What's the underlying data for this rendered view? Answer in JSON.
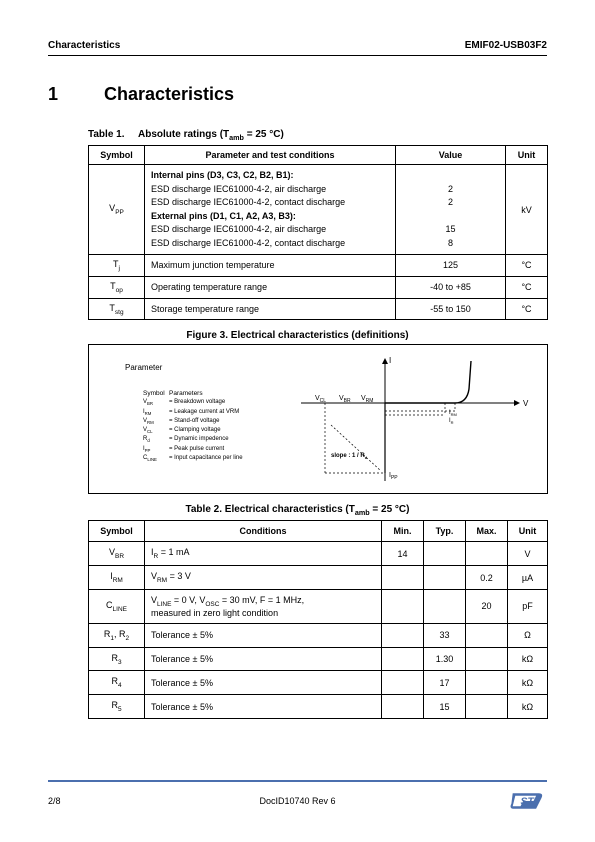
{
  "header": {
    "left": "Characteristics",
    "right": "EMIF02-USB03F2"
  },
  "section": {
    "number": "1",
    "title": "Characteristics"
  },
  "table1": {
    "caption_prefix": "Table 1.",
    "caption_main": "Absolute ratings (T",
    "caption_sub": "amb",
    "caption_suffix": " = 25 °C)",
    "headers": {
      "symbol": "Symbol",
      "param": "Parameter and test conditions",
      "value": "Value",
      "unit": "Unit"
    },
    "rows": [
      {
        "symbol_main": "V",
        "symbol_sub": "PP",
        "lines": [
          {
            "text": "Internal pins (D3, C3, C2, B2, B1):",
            "bold": true
          },
          {
            "text": "ESD discharge IEC61000-4-2, air discharge"
          },
          {
            "text": "ESD discharge IEC61000-4-2, contact discharge"
          },
          {
            "text": "External pins (D1, C1, A2, A3, B3):",
            "bold": true
          },
          {
            "text": "ESD discharge IEC61000-4-2, air discharge"
          },
          {
            "text": "ESD discharge IEC61000-4-2, contact discharge"
          }
        ],
        "values": [
          "",
          "2",
          "2",
          "",
          "15",
          "8"
        ],
        "unit": "kV"
      },
      {
        "symbol_main": "T",
        "symbol_sub": "j",
        "param": "Maximum junction temperature",
        "value": "125",
        "unit": "°C"
      },
      {
        "symbol_main": "T",
        "symbol_sub": "op",
        "param": "Operating temperature range",
        "value": "-40 to +85",
        "unit": "°C"
      },
      {
        "symbol_main": "T",
        "symbol_sub": "stg",
        "param": "Storage temperature range",
        "value": "-55 to 150",
        "unit": "°C"
      }
    ]
  },
  "figure3": {
    "caption": "Figure 3. Electrical characteristics (definitions)",
    "param_label": "Parameter",
    "legend_head_sym": "Symbol",
    "legend_head_par": "Parameters",
    "legend": [
      {
        "sym": "V",
        "sub": "BR",
        "desc": "= Breakdown voltage"
      },
      {
        "sym": "I",
        "sub": "RM",
        "desc": "= Leakage current at VRM"
      },
      {
        "sym": "V",
        "sub": "RM",
        "desc": "= Stand-off voltage"
      },
      {
        "sym": "V",
        "sub": "CL",
        "desc": "= Clamping voltage"
      },
      {
        "sym": "R",
        "sub": "d",
        "desc": "= Dynamic impedence"
      },
      {
        "sym": "I",
        "sub": "PP",
        "desc": "= Peak pulse current"
      },
      {
        "sym": "C",
        "sub": "LINE",
        "desc": "= Input capacitance per line"
      }
    ],
    "axis_labels": {
      "I": "I",
      "V": "V",
      "VCL": "V",
      "VCL_sub": "CL",
      "VBR": "V",
      "VBR_sub": "BR",
      "VRM": "V",
      "VRM_sub": "RM",
      "IRM": "I",
      "IRM_sub": "RM",
      "IR": "I",
      "IR_sub": "R",
      "IPP": "I",
      "IPP_sub": "PP",
      "slope": "slope : 1 / R",
      "slope_sub": "d"
    },
    "colors": {
      "axis": "#000000",
      "curve": "#000000",
      "dash": "#000000"
    }
  },
  "table2": {
    "caption_prefix": "Table 2. Electrical characteristics (T",
    "caption_sub": "amb",
    "caption_suffix": " = 25 °C)",
    "headers": {
      "symbol": "Symbol",
      "cond": "Conditions",
      "min": "Min.",
      "typ": "Typ.",
      "max": "Max.",
      "unit": "Unit"
    },
    "rows": [
      {
        "sym": "V",
        "sub": "BR",
        "cond_pre": "I",
        "cond_sub": "R",
        "cond_post": " = 1 mA",
        "min": "14",
        "typ": "",
        "max": "",
        "unit": "V"
      },
      {
        "sym": "I",
        "sub": "RM",
        "cond_pre": "V",
        "cond_sub": "RM",
        "cond_post": " = 3 V",
        "min": "",
        "typ": "",
        "max": "0.2",
        "unit": "µA"
      },
      {
        "sym": "C",
        "sub": "LINE",
        "cond_html": "cline",
        "min": "",
        "typ": "",
        "max": "20",
        "unit": "pF"
      },
      {
        "sym": "R",
        "sub": "1",
        "sub2": "2",
        "sym2": "R",
        "cond": "Tolerance ± 5%",
        "min": "",
        "typ": "33",
        "max": "",
        "unit": "Ω"
      },
      {
        "sym": "R",
        "sub": "3",
        "cond": "Tolerance ± 5%",
        "min": "",
        "typ": "1.30",
        "max": "",
        "unit": "kΩ"
      },
      {
        "sym": "R",
        "sub": "4",
        "cond": "Tolerance ± 5%",
        "min": "",
        "typ": "17",
        "max": "",
        "unit": "kΩ"
      },
      {
        "sym": "R",
        "sub": "5",
        "cond": "Tolerance ± 5%",
        "min": "",
        "typ": "15",
        "max": "",
        "unit": "kΩ"
      }
    ],
    "cline_cond": {
      "p1": "V",
      "s1": "LINE",
      "p2": " = 0 V, V",
      "s2": "OSC",
      "p3": " = 30 mV, F = 1 MHz,",
      "line2": "measured in zero light condition"
    }
  },
  "footer": {
    "page": "2/8",
    "docid": "DocID10740 Rev 6"
  }
}
